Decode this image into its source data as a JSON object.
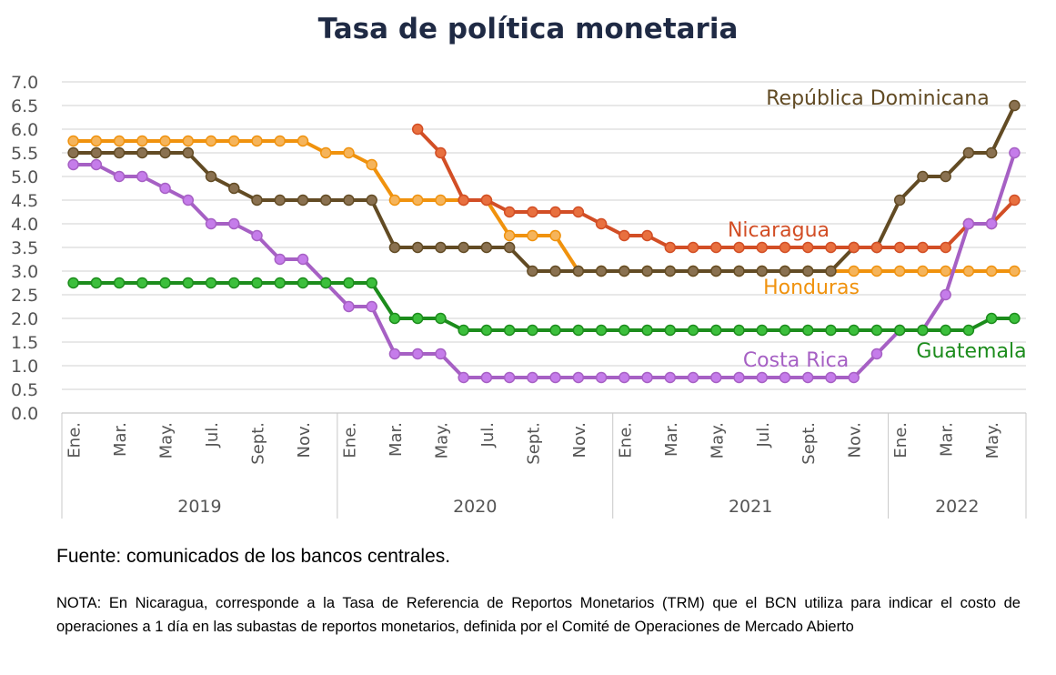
{
  "title": "Tasa de política monetaria",
  "source": "Fuente: comunicados de los bancos centrales.",
  "note": "NOTA: En Nicaragua, corresponde a la Tasa de Referencia de Reportos Monetarios (TRM) que el BCN utiliza para indicar el costo de operaciones a 1 día en las subastas de reportos monetarios, definida por el Comité de Operaciones de Mercado Abierto",
  "chart_data": {
    "type": "line",
    "title": "Tasa de política monetaria",
    "ylim": [
      0,
      7
    ],
    "yticks": [
      "0.0",
      "0.5",
      "1.0",
      "1.5",
      "2.0",
      "2.5",
      "3.0",
      "3.5",
      "4.0",
      "4.5",
      "5.0",
      "5.5",
      "6.0",
      "6.5",
      "7.0"
    ],
    "grid": "horizontal",
    "x": [
      "2019-01",
      "2019-02",
      "2019-03",
      "2019-04",
      "2019-05",
      "2019-06",
      "2019-07",
      "2019-08",
      "2019-09",
      "2019-10",
      "2019-11",
      "2019-12",
      "2020-01",
      "2020-02",
      "2020-03",
      "2020-04",
      "2020-05",
      "2020-06",
      "2020-07",
      "2020-08",
      "2020-09",
      "2020-10",
      "2020-11",
      "2020-12",
      "2021-01",
      "2021-02",
      "2021-03",
      "2021-04",
      "2021-05",
      "2021-06",
      "2021-07",
      "2021-08",
      "2021-09",
      "2021-10",
      "2021-11",
      "2021-12",
      "2022-01",
      "2022-02",
      "2022-03",
      "2022-04",
      "2022-05",
      "2022-06"
    ],
    "month_tick_labels": [
      "Ene.",
      "Mar.",
      "May.",
      "Jul.",
      "Sept.",
      "Nov.",
      "Ene.",
      "Mar.",
      "May.",
      "Jul.",
      "Sept.",
      "Nov.",
      "Ene.",
      "Mar.",
      "May.",
      "Jul.",
      "Sept.",
      "Nov.",
      "Ene.",
      "Mar.",
      "May."
    ],
    "month_tick_index": [
      0,
      2,
      4,
      6,
      8,
      10,
      12,
      14,
      16,
      18,
      20,
      22,
      24,
      26,
      28,
      30,
      32,
      34,
      36,
      38,
      40
    ],
    "years": [
      {
        "label": "2019",
        "start": 0,
        "end": 12
      },
      {
        "label": "2020",
        "start": 12,
        "end": 24
      },
      {
        "label": "2021",
        "start": 24,
        "end": 36
      },
      {
        "label": "2022",
        "start": 36,
        "end": 42
      }
    ],
    "series": [
      {
        "name": "Honduras",
        "color": "#f0920d",
        "marker": "#f5b45b",
        "values": [
          5.75,
          5.75,
          5.75,
          5.75,
          5.75,
          5.75,
          5.75,
          5.75,
          5.75,
          5.75,
          5.75,
          5.5,
          5.5,
          5.25,
          4.5,
          4.5,
          4.5,
          4.5,
          4.5,
          3.75,
          3.75,
          3.75,
          3.0,
          3.0,
          3.0,
          3.0,
          3.0,
          3.0,
          3.0,
          3.0,
          3.0,
          3.0,
          3.0,
          3.0,
          3.0,
          3.0,
          3.0,
          3.0,
          3.0,
          3.0,
          3.0,
          3.0
        ]
      },
      {
        "name": "República Dominicana",
        "color": "#624b24",
        "marker": "#8a7150",
        "values": [
          5.5,
          5.5,
          5.5,
          5.5,
          5.5,
          5.5,
          5.0,
          4.75,
          4.5,
          4.5,
          4.5,
          4.5,
          4.5,
          4.5,
          3.5,
          3.5,
          3.5,
          3.5,
          3.5,
          3.5,
          3.0,
          3.0,
          3.0,
          3.0,
          3.0,
          3.0,
          3.0,
          3.0,
          3.0,
          3.0,
          3.0,
          3.0,
          3.0,
          3.0,
          3.5,
          3.5,
          4.5,
          5.0,
          5.0,
          5.5,
          5.5,
          6.5
        ]
      },
      {
        "name": "Nicaragua",
        "color": "#d24e25",
        "marker": "#e8703f",
        "values": [
          null,
          null,
          null,
          null,
          null,
          null,
          null,
          null,
          null,
          null,
          null,
          null,
          null,
          null,
          null,
          6.0,
          5.5,
          4.5,
          4.5,
          4.25,
          4.25,
          4.25,
          4.25,
          4.0,
          3.75,
          3.75,
          3.5,
          3.5,
          3.5,
          3.5,
          3.5,
          3.5,
          3.5,
          3.5,
          3.5,
          3.5,
          3.5,
          3.5,
          3.5,
          4.0,
          4.0,
          4.5
        ]
      },
      {
        "name": "Costa Rica",
        "color": "#a660c4",
        "marker": "#c57cea",
        "values": [
          5.25,
          5.25,
          5.0,
          5.0,
          4.75,
          4.5,
          4.0,
          4.0,
          3.75,
          3.25,
          3.25,
          2.75,
          2.25,
          2.25,
          1.25,
          1.25,
          1.25,
          0.75,
          0.75,
          0.75,
          0.75,
          0.75,
          0.75,
          0.75,
          0.75,
          0.75,
          0.75,
          0.75,
          0.75,
          0.75,
          0.75,
          0.75,
          0.75,
          0.75,
          0.75,
          1.25,
          1.75,
          1.75,
          2.5,
          4.0,
          4.0,
          5.5
        ]
      },
      {
        "name": "Guatemala",
        "color": "#1c8c1c",
        "marker": "#3cbf3c",
        "values": [
          2.75,
          2.75,
          2.75,
          2.75,
          2.75,
          2.75,
          2.75,
          2.75,
          2.75,
          2.75,
          2.75,
          2.75,
          2.75,
          2.75,
          2.0,
          2.0,
          2.0,
          1.75,
          1.75,
          1.75,
          1.75,
          1.75,
          1.75,
          1.75,
          1.75,
          1.75,
          1.75,
          1.75,
          1.75,
          1.75,
          1.75,
          1.75,
          1.75,
          1.75,
          1.75,
          1.75,
          1.75,
          1.75,
          1.75,
          1.75,
          2.0,
          2.0
        ]
      }
    ]
  }
}
